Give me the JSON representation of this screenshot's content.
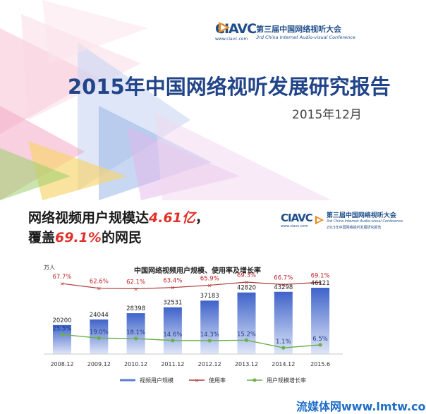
{
  "cover": {
    "logo": {
      "wordmark": "CIAVC",
      "url": "www.ciavc.com",
      "cn": "第三届中国网络视听大会",
      "en": "3rd China Internet Audio-visual Conference"
    },
    "title": "2015年中国网络视听发展研究报告",
    "date": "2015年12月",
    "colors": {
      "accent": "#22458a",
      "highlight": "#e0302a"
    }
  },
  "slide2": {
    "headline": {
      "line1_prefix": "网络视频用户规模达",
      "line1_value": "4.61亿",
      "line1_suffix": "，",
      "line2_prefix": "覆盖",
      "line2_value": "69.1%",
      "line2_suffix": "的网民"
    },
    "logo": {
      "wordmark": "CIAVC",
      "url": "www.ciavc.com",
      "cn": "第三届中国网络视听大会",
      "en": "3rd China Internet Audio-visual Conference",
      "report": "2015年中国网络视听发展研究报告"
    }
  },
  "watermark": "流媒体网www.lmtw.com",
  "chart_data": {
    "type": "bar",
    "title": "中国网络视频用户规模、使用率及增长率",
    "unit_label": "万人",
    "categories": [
      "2008.12",
      "2009.12",
      "2010.12",
      "2011.12",
      "2012.12",
      "2013.12",
      "2014.12",
      "2015.6"
    ],
    "series": [
      {
        "name": "视频用户规模",
        "type": "bar",
        "color": "#5b7fd6",
        "values": [
          20200,
          24044,
          28398,
          32531,
          37183,
          42820,
          43298,
          46121
        ],
        "labels": [
          "20200",
          "24044",
          "28398",
          "32531",
          "37183",
          "42820",
          "43298",
          "46121"
        ]
      },
      {
        "name": "使用率",
        "type": "line",
        "color": "#b03a3a",
        "values": [
          67.7,
          62.6,
          62.1,
          63.4,
          65.9,
          69.3,
          66.7,
          69.1
        ],
        "labels": [
          "67.7%",
          "62.6%",
          "62.1%",
          "63.4%",
          "65.9%",
          "69.3%",
          "66.7%",
          "69.1%"
        ]
      },
      {
        "name": "用户规模增长率",
        "type": "line",
        "color": "#6ab04c",
        "values": [
          25.5,
          19.0,
          18.1,
          14.6,
          14.3,
          15.2,
          1.1,
          6.5
        ],
        "labels": [
          "25.5%",
          "19.0%",
          "18.1%",
          "14.6%",
          "14.3%",
          "15.2%",
          "1.1%",
          "6.5%"
        ]
      }
    ],
    "legend_position": "bottom",
    "grid": false
  }
}
